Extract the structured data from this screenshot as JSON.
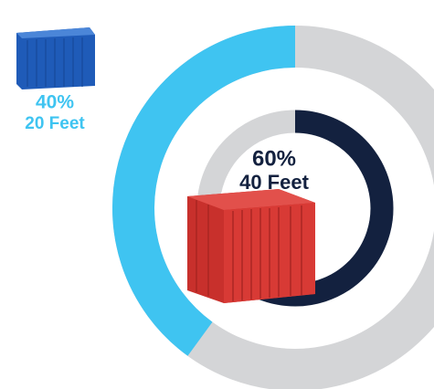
{
  "chart_data": {
    "type": "donut",
    "categories": [
      "20 Feet",
      "40 Feet"
    ],
    "values": [
      40,
      60
    ],
    "value_labels": [
      "40%",
      "60%"
    ],
    "colors": [
      "#3fc4f1",
      "#13213f"
    ]
  }
}
